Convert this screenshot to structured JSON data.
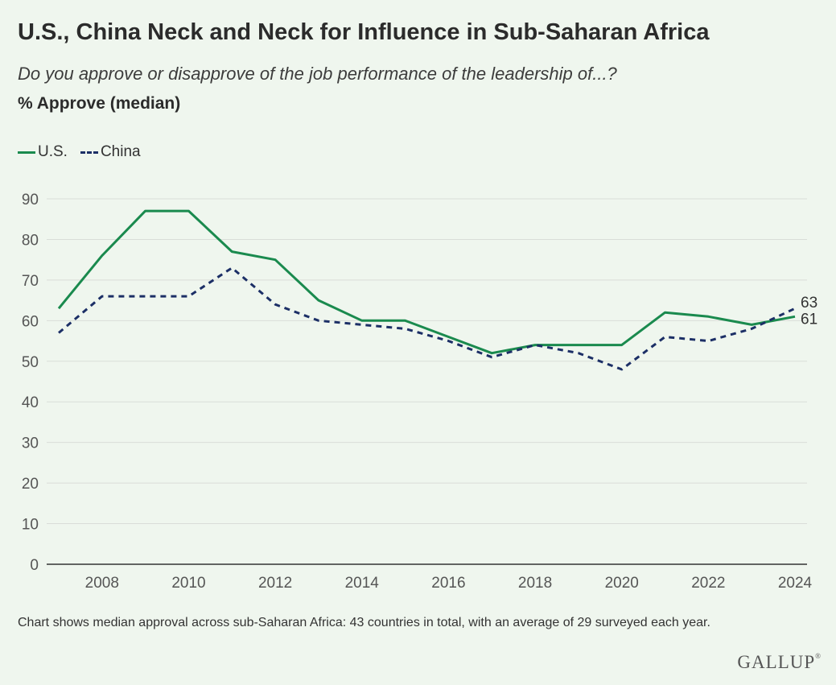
{
  "title": "U.S., China Neck and Neck for Influence in Sub-Saharan Africa",
  "subtitle": "Do you approve or disapprove of the job performance of the leadership of...?",
  "measure": "% Approve (median)",
  "legend": [
    {
      "label": "U.S.",
      "style": "solid",
      "color": "#1a8a4e"
    },
    {
      "label": "China",
      "style": "dashed",
      "color": "#1c2f66"
    }
  ],
  "footnote": "Chart shows median approval across sub-Saharan Africa: 43 countries in total, with an average of 29 surveyed each year.",
  "logo": "GALLUP",
  "chart_data": {
    "type": "line",
    "x": [
      2007,
      2008,
      2009,
      2010,
      2011,
      2012,
      2013,
      2014,
      2015,
      2016,
      2017,
      2018,
      2019,
      2020,
      2021,
      2022,
      2023,
      2024
    ],
    "series": [
      {
        "name": "U.S.",
        "color": "#1a8a4e",
        "style": "solid",
        "values": [
          63,
          76,
          87,
          87,
          77,
          75,
          65,
          60,
          60,
          56,
          52,
          54,
          54,
          54,
          62,
          61,
          59,
          61
        ],
        "end_label": "61"
      },
      {
        "name": "China",
        "color": "#1c2f66",
        "style": "dashed",
        "values": [
          57,
          66,
          66,
          66,
          73,
          64,
          60,
          59,
          58,
          55,
          51,
          54,
          52,
          48,
          56,
          55,
          58,
          63
        ],
        "end_label": "63"
      }
    ],
    "xticks": [
      "2008",
      "2010",
      "2012",
      "2014",
      "2016",
      "2018",
      "2020",
      "2022",
      "2024"
    ],
    "yticks": [
      "0",
      "10",
      "20",
      "30",
      "40",
      "50",
      "60",
      "70",
      "80",
      "90"
    ],
    "ylim": [
      0,
      90
    ],
    "xlim": [
      2007,
      2024
    ],
    "grid": true
  }
}
